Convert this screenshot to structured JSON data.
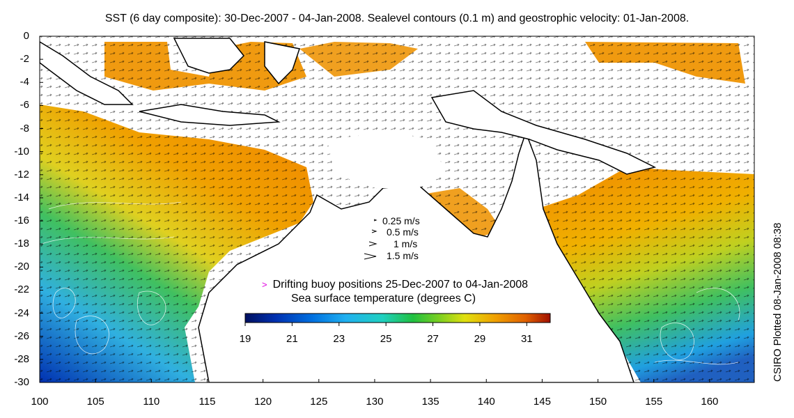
{
  "title": "SST (6 day composite): 30-Dec-2007 - 04-Jan-2008. Sealevel contours (0.1 m) and geostrophic velocity: 01-Jan-2008.",
  "credit": "CSIRO Plotted 08-Jan-2008 08:38",
  "axes": {
    "x_ticks": [
      "100",
      "105",
      "110",
      "115",
      "120",
      "125",
      "130",
      "135",
      "140",
      "145",
      "150",
      "155",
      "160"
    ],
    "y_ticks": [
      "0",
      "-2",
      "-4",
      "-6",
      "-8",
      "-10",
      "-12",
      "-14",
      "-16",
      "-18",
      "-20",
      "-22",
      "-24",
      "-26",
      "-28",
      "-30"
    ]
  },
  "velocity_legend": [
    {
      "label": "0.25 m/s",
      "speed": 0.25
    },
    {
      "label": "0.5 m/s",
      "speed": 0.5
    },
    {
      "label": "1 m/s",
      "speed": 1
    },
    {
      "label": "1.5 m/s",
      "speed": 1.5
    }
  ],
  "buoy_legend": {
    "marker": ">",
    "text": "Drifting buoy positions 25-Dec-2007 to 04-Jan-2008",
    "color": "#e000e0"
  },
  "colorbar": {
    "title": "Sea surface temperature (degrees C)",
    "ticks": [
      "19",
      "21",
      "23",
      "25",
      "27",
      "29",
      "31"
    ],
    "range": [
      19,
      32
    ],
    "colors": [
      "#001060",
      "#0030b0",
      "#0070e0",
      "#20b0f0",
      "#20d0c0",
      "#20c040",
      "#80d020",
      "#e0e010",
      "#f0a000",
      "#e06000",
      "#a01000"
    ]
  }
}
